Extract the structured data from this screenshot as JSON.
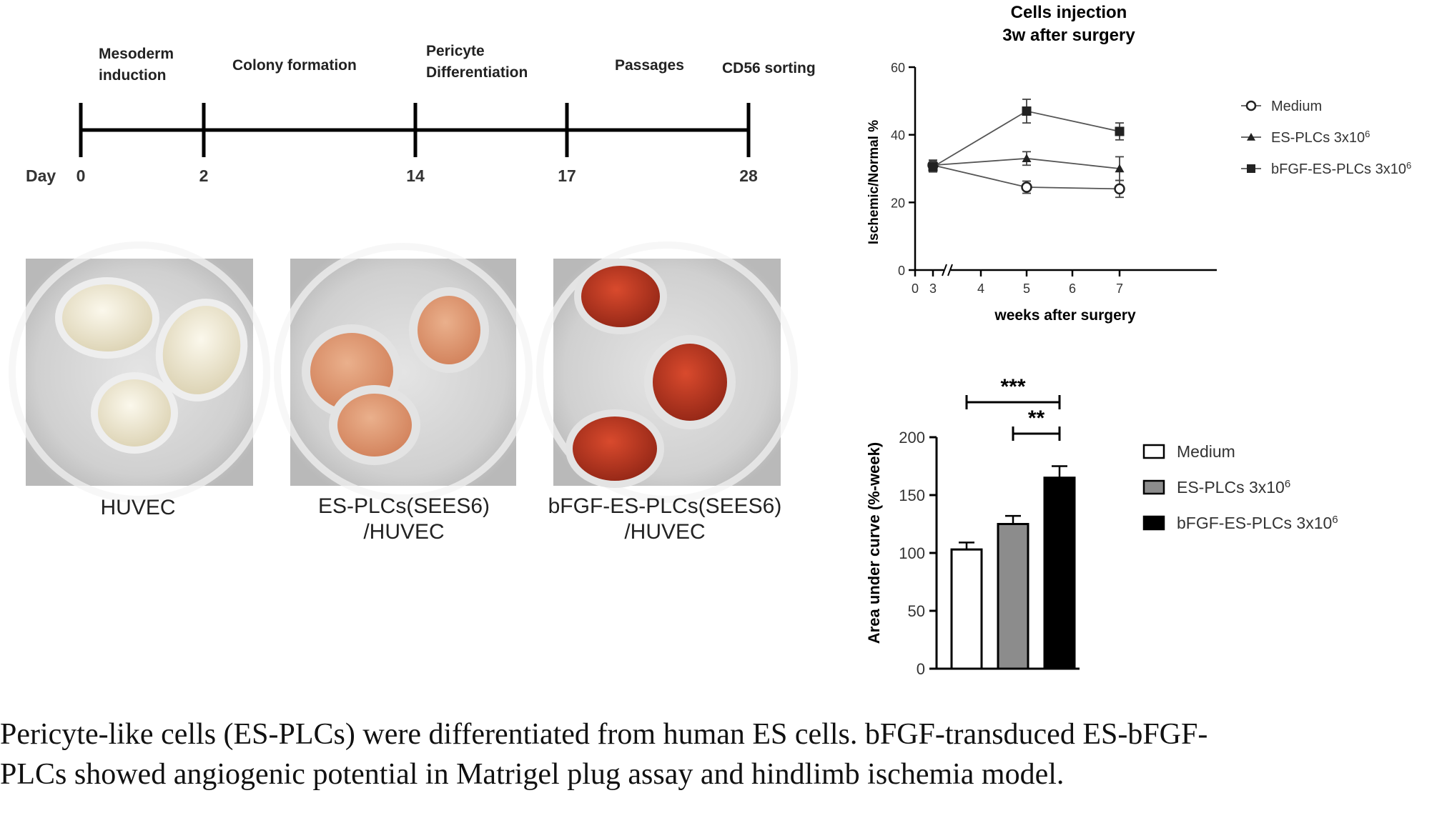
{
  "timeline": {
    "day_label": "Day",
    "steps": [
      {
        "label_lines": [
          "Mesoderm",
          "induction"
        ]
      },
      {
        "label_lines": [
          "Colony formation"
        ]
      },
      {
        "label_lines": [
          "Pericyte",
          "Differentiation"
        ]
      },
      {
        "label_lines": [
          "Passages"
        ]
      },
      {
        "label_lines": [
          "CD56 sorting"
        ]
      }
    ],
    "days": [
      "0",
      "2",
      "14",
      "17",
      "28"
    ]
  },
  "photos": [
    {
      "label_lines": [
        "HUVEC"
      ],
      "plug_color": "#f1ead3",
      "dish_color": "#d9d9d9"
    },
    {
      "label_lines": [
        "ES-PLCs(SEES6)",
        "/HUVEC"
      ],
      "plug_color": "#e59a73",
      "dish_color": "#d4d4d4"
    },
    {
      "label_lines": [
        "bFGF-ES-PLCs(SEES6)",
        "/HUVEC"
      ],
      "plug_color": "#b7321f",
      "dish_color": "#d2d2d2"
    }
  ],
  "chart_data": [
    {
      "type": "line",
      "title": "Cells injection",
      "subtitle": "3w after surgery",
      "xlabel": "weeks after surgery",
      "ylabel": "Ischemic/Normal %",
      "x_ticks": [
        "0",
        "3",
        "4",
        "5",
        "6",
        "7"
      ],
      "y_ticks": [
        "0",
        "20",
        "40",
        "60"
      ],
      "ylim": [
        0,
        60
      ],
      "x": [
        3,
        5,
        7
      ],
      "axis_break": true,
      "legend_position": "right",
      "series": [
        {
          "name": "Medium",
          "marker": "open-circle",
          "values": [
            31,
            24.5,
            24
          ],
          "errors": [
            1.5,
            1.8,
            2.5
          ]
        },
        {
          "name": "ES-PLCs 3x10",
          "sup": "6",
          "marker": "triangle",
          "values": [
            31,
            33,
            30
          ],
          "errors": [
            1.5,
            2.0,
            3.5
          ]
        },
        {
          "name": "bFGF-ES-PLCs 3x10",
          "sup": "6",
          "marker": "square",
          "values": [
            30.5,
            47,
            41
          ],
          "errors": [
            1.5,
            3.5,
            2.5
          ]
        }
      ]
    },
    {
      "type": "bar",
      "ylabel": "Area under curve (%-week)",
      "y_ticks": [
        "0",
        "50",
        "100",
        "150",
        "200"
      ],
      "ylim": [
        0,
        200
      ],
      "legend_position": "right",
      "series": [
        {
          "name": "Medium",
          "value": 103,
          "error": 6,
          "fill": "#ffffff"
        },
        {
          "name": "ES-PLCs 3x10",
          "sup": "6",
          "value": 125,
          "error": 7,
          "fill": "#8c8c8c"
        },
        {
          "name": "bFGF-ES-PLCs 3x10",
          "sup": "6",
          "value": 165,
          "error": 10,
          "fill": "#000000"
        }
      ],
      "significance": [
        {
          "from": 0,
          "to": 2,
          "label": "***"
        },
        {
          "from": 1,
          "to": 2,
          "label": "**"
        }
      ]
    }
  ],
  "caption": {
    "line1": "Pericyte-like cells (ES-PLCs) were differentiated from human ES cells. bFGF-transduced ES-bFGF-",
    "line2": "PLCs showed angiogenic potential in Matrigel plug assay and hindlimb ischemia model."
  }
}
